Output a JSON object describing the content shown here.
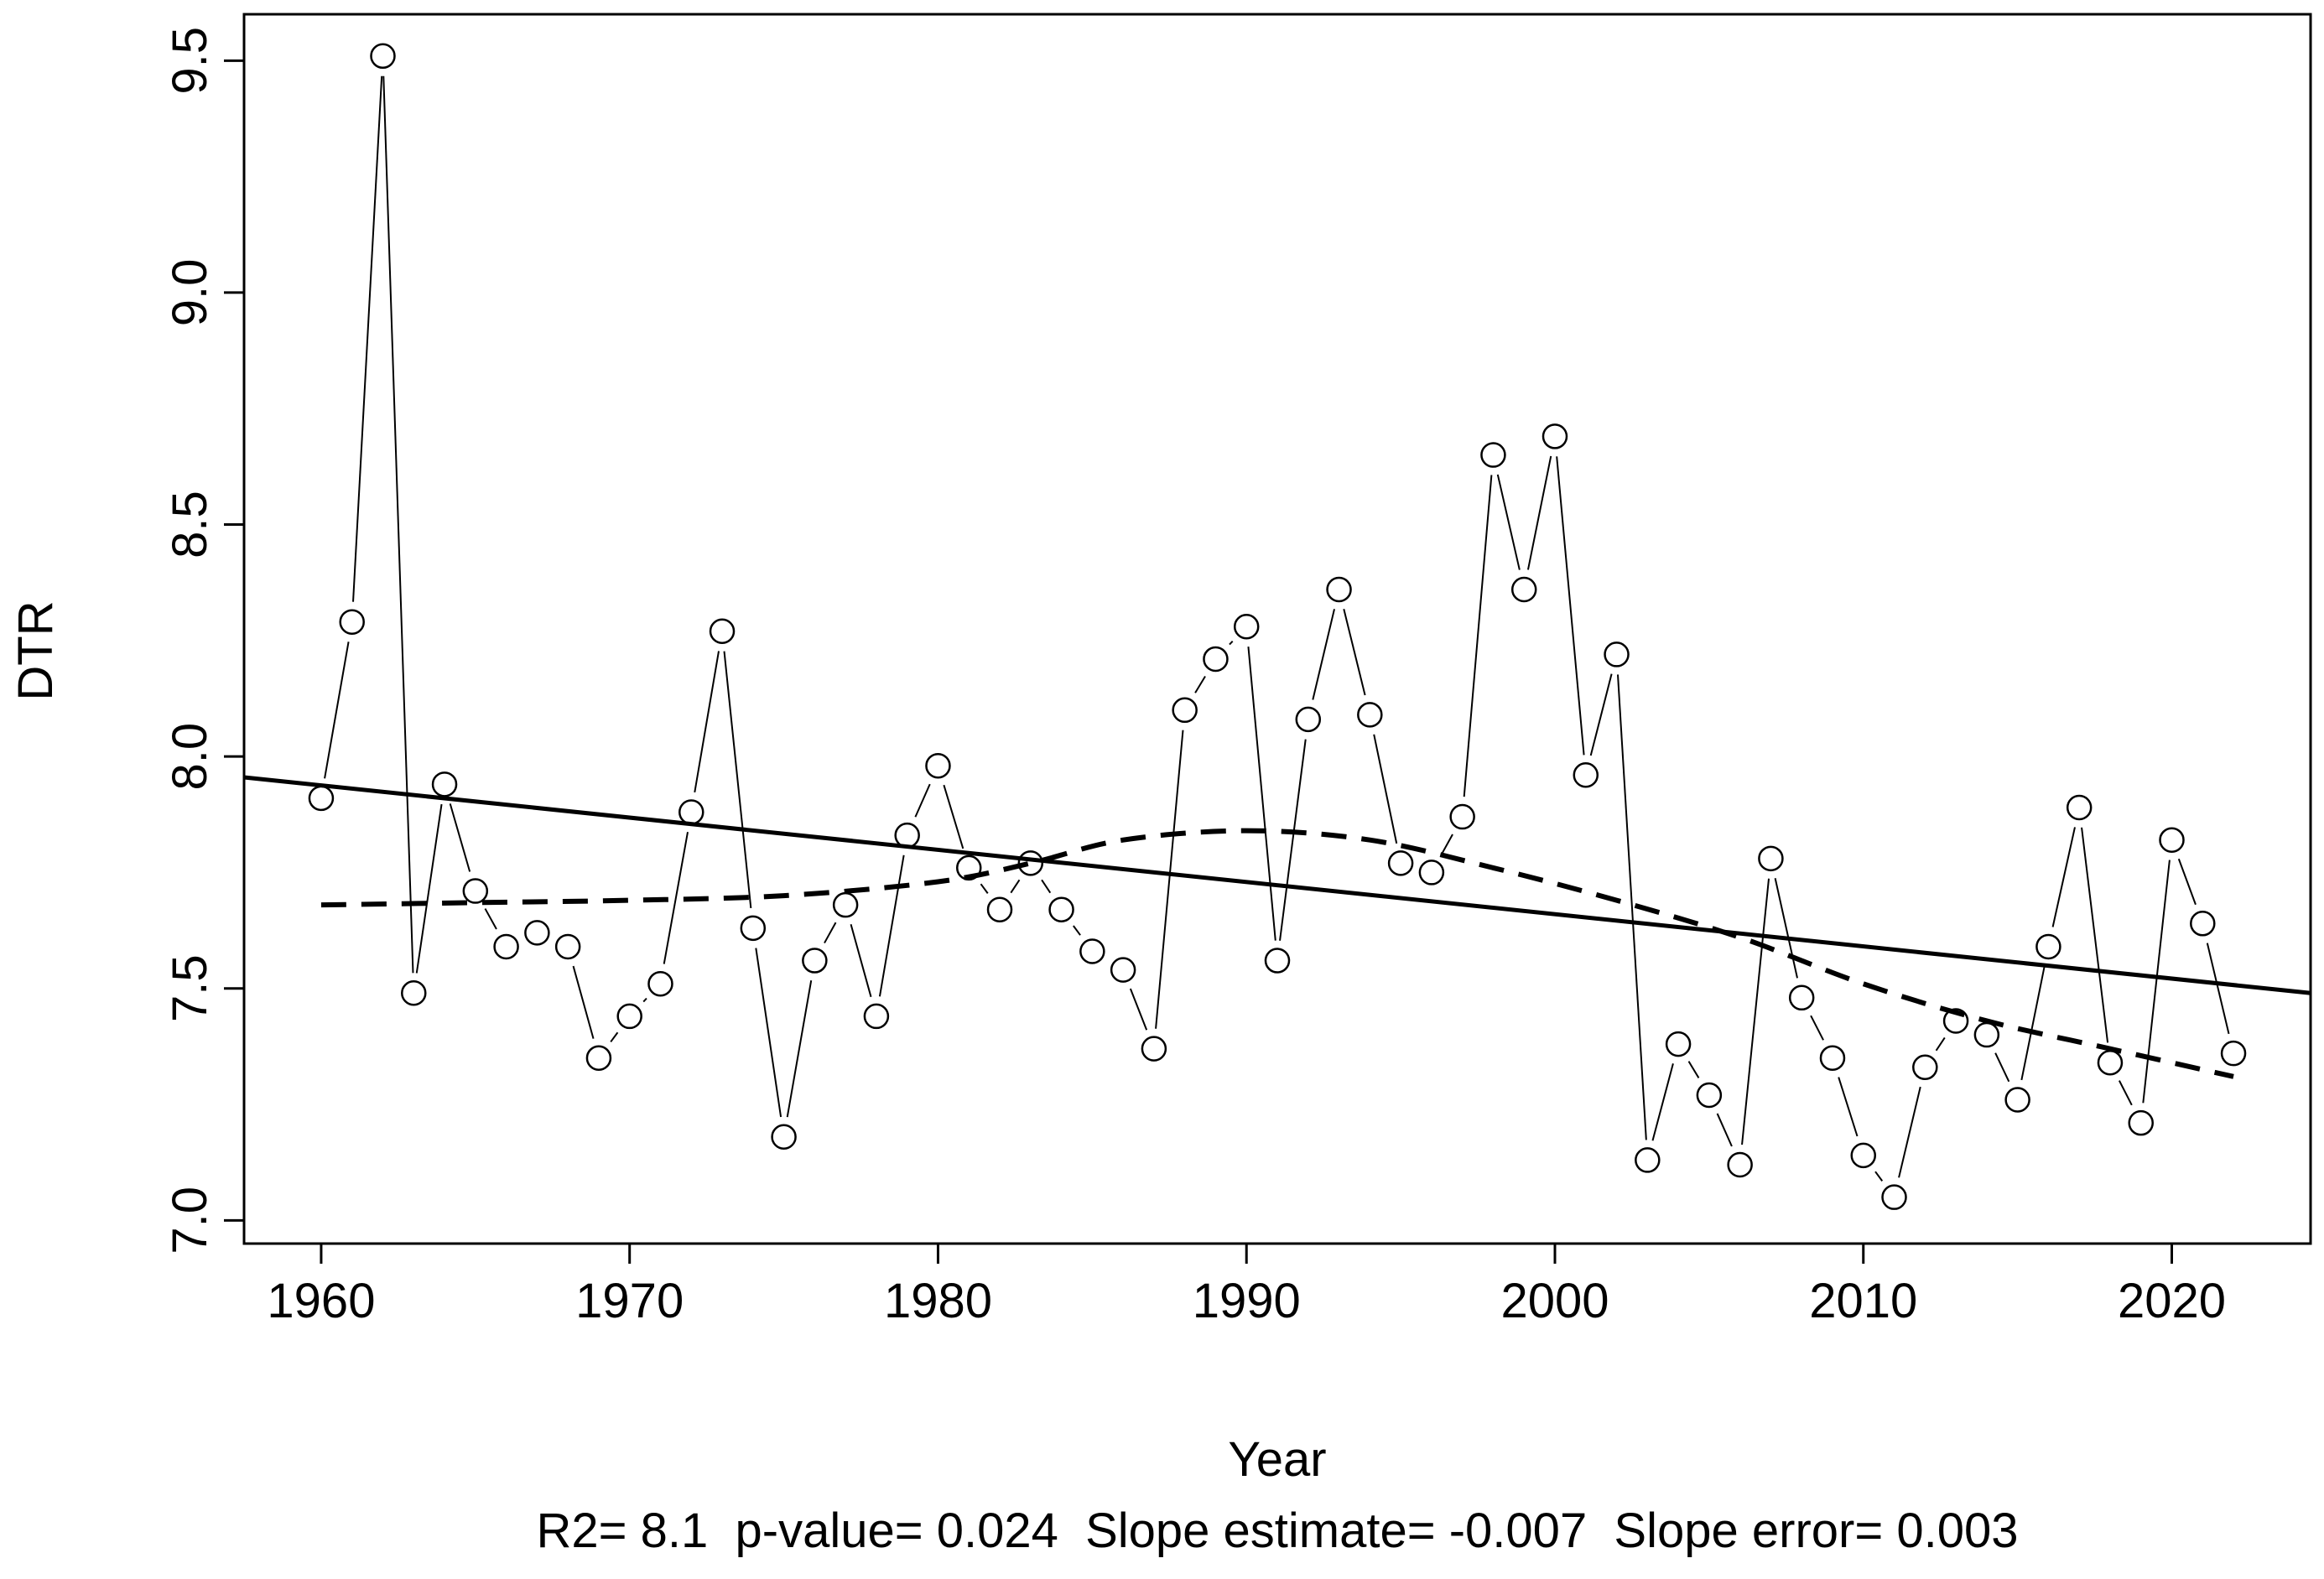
{
  "chart_data": {
    "type": "line",
    "title": "",
    "xlabel": "Year",
    "ylabel": "DTR",
    "footer": "R2= 8.1  p-value= 0.024  Slope estimate= -0.007  Slope error= 0.003",
    "xlim": [
      1957.5,
      2024.5
    ],
    "ylim": [
      6.95,
      9.6
    ],
    "x_ticks": [
      1960,
      1970,
      1980,
      1990,
      2000,
      2010,
      2020
    ],
    "y_ticks": [
      7.0,
      7.5,
      8.0,
      8.5,
      9.0,
      9.5
    ],
    "y_tick_labels": [
      "7.0",
      "7.5",
      "8.0",
      "8.5",
      "9.0",
      "9.5"
    ],
    "grid": false,
    "series": [
      {
        "style": "points-connected",
        "x": [
          1960,
          1961,
          1962,
          1963,
          1964,
          1965,
          1966,
          1967,
          1968,
          1969,
          1970,
          1971,
          1972,
          1973,
          1974,
          1975,
          1976,
          1977,
          1978,
          1979,
          1980,
          1981,
          1982,
          1983,
          1984,
          1985,
          1986,
          1987,
          1988,
          1989,
          1990,
          1991,
          1992,
          1993,
          1994,
          1995,
          1996,
          1997,
          1998,
          1999,
          2000,
          2001,
          2002,
          2003,
          2004,
          2005,
          2006,
          2007,
          2008,
          2009,
          2010,
          2011,
          2012,
          2013,
          2014,
          2015,
          2016,
          2017,
          2018,
          2019,
          2020,
          2021,
          2022
        ],
        "values": [
          7.91,
          8.29,
          9.51,
          7.49,
          7.94,
          7.71,
          7.59,
          7.62,
          7.59,
          7.35,
          7.44,
          7.51,
          7.88,
          8.27,
          7.63,
          7.18,
          7.56,
          7.68,
          7.44,
          7.83,
          7.98,
          7.76,
          7.67,
          7.77,
          7.67,
          7.58,
          7.54,
          7.37,
          8.1,
          8.21,
          8.28,
          7.56,
          8.08,
          8.36,
          8.09,
          7.77,
          7.75,
          7.87,
          8.65,
          8.36,
          8.69,
          7.96,
          8.22,
          7.13,
          7.38,
          7.27,
          7.12,
          7.78,
          7.48,
          7.35,
          7.14,
          7.05,
          7.33,
          7.43,
          7.4,
          7.26,
          7.59,
          7.89,
          7.34,
          7.21,
          7.82,
          7.64,
          7.36
        ]
      },
      {
        "style": "linear-trend",
        "x": [
          1957.5,
          2024.5
        ],
        "values": [
          7.955,
          7.49
        ]
      },
      {
        "style": "smoothed-dashed",
        "x": [
          1960,
          1965,
          1970,
          1975,
          1980,
          1983,
          1986,
          1990,
          1994,
          1998,
          2002,
          2006,
          2010,
          2014,
          2018,
          2022
        ],
        "values": [
          7.68,
          7.685,
          7.69,
          7.7,
          7.73,
          7.77,
          7.82,
          7.84,
          7.82,
          7.76,
          7.69,
          7.61,
          7.51,
          7.43,
          7.37,
          7.31
        ]
      }
    ]
  }
}
